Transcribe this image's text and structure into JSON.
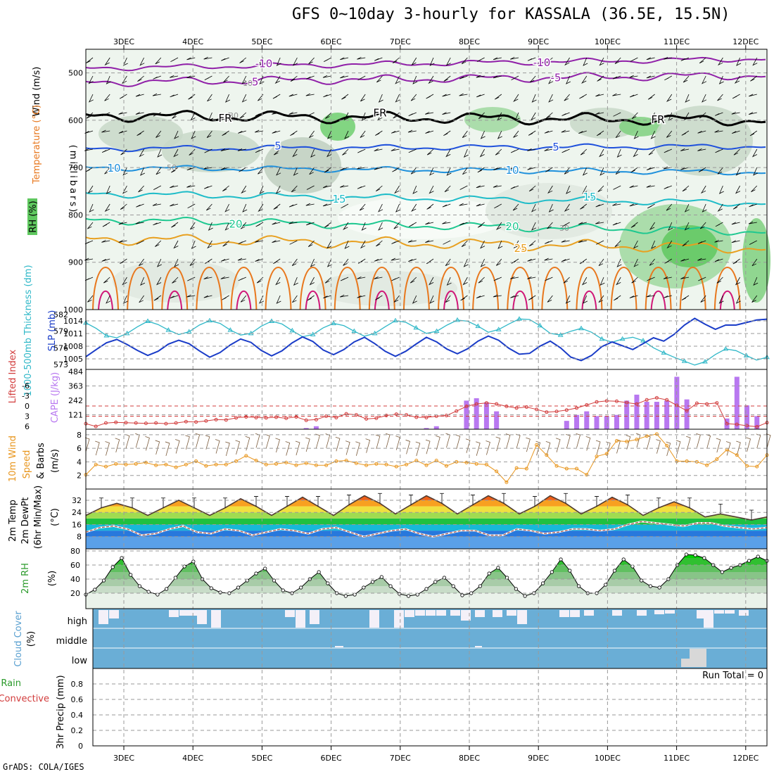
{
  "title": "GFS 0~10day 3-hourly for KASSALA (36.5E, 15.5N)",
  "credit": "GrADS: COLA/IGES",
  "run_total": "Run Total = 0",
  "chart_data": [
    {
      "type": "contour",
      "name": "upper-air cross section",
      "x_dates": [
        "3DEC",
        "4DEC",
        "5DEC",
        "6DEC",
        "7DEC",
        "8DEC",
        "9DEC",
        "10DEC",
        "11DEC",
        "12DEC"
      ],
      "ylabel": "(millibars)",
      "side_labels": [
        "Wind (m/s)",
        "Temperature (°C)",
        "RH (%)"
      ],
      "yticks": [
        500,
        600,
        700,
        800,
        900,
        1000
      ],
      "ylim": [
        1000,
        450
      ],
      "temperature_contours": [
        {
          "value": -10,
          "label": "-10"
        },
        {
          "value": -5,
          "label": "-5"
        },
        {
          "value": 0,
          "label": "FR"
        },
        {
          "value": 5,
          "label": "5"
        },
        {
          "value": 10,
          "label": "10"
        },
        {
          "value": 15,
          "label": "15"
        },
        {
          "value": 20,
          "label": "20"
        },
        {
          "value": 25,
          "label": "25"
        }
      ],
      "rh_labels": [
        "10",
        "30",
        "30",
        "50"
      ]
    },
    {
      "type": "line",
      "name": "thickness and SLP",
      "ylabel_left": "1000-500mb Thickness (dm)",
      "ylabel_right": "SLP (mb)",
      "left_ticks": [
        573,
        576,
        579,
        582
      ],
      "right_ticks": [
        1005,
        1008,
        1011,
        1014
      ],
      "series": [
        {
          "name": "Thickness",
          "color": "#30b8c8",
          "values": [
            580.5,
            579.5,
            578.2,
            577.8,
            578.6,
            579.8,
            580.8,
            580.2,
            579.2,
            578.4,
            578.9,
            580.1,
            580.9,
            580.4,
            579.2,
            578.3,
            578.6,
            579.9,
            580.8,
            580.3,
            579.1,
            578.0,
            578.4,
            579.6,
            580.4,
            580.0,
            579.0,
            578.1,
            578.6,
            579.8,
            580.9,
            580.6,
            579.6,
            578.6,
            579.0,
            580.1,
            581.0,
            580.8,
            579.9,
            578.8,
            579.3,
            580.3,
            581.2,
            581.1,
            580.0,
            578.6,
            578.3,
            579.0,
            579.5,
            578.8,
            577.6,
            577.0,
            577.6,
            577.9,
            577.3,
            576.0,
            575.1,
            574.3,
            573.6,
            572.9,
            573.5,
            574.8,
            575.8,
            575.5,
            574.6,
            573.8,
            574.3
          ]
        },
        {
          "name": "SLP",
          "color": "#1a3cc8",
          "values": [
            1005.5,
            1007.2,
            1008.8,
            1009.6,
            1008.4,
            1007.0,
            1005.8,
            1006.8,
            1008.5,
            1009.4,
            1008.6,
            1006.9,
            1005.4,
            1006.5,
            1008.3,
            1009.7,
            1008.9,
            1007.0,
            1005.7,
            1006.9,
            1008.8,
            1010.2,
            1009.1,
            1007.1,
            1006.0,
            1007.2,
            1009.0,
            1010.1,
            1008.6,
            1006.8,
            1005.6,
            1006.8,
            1008.5,
            1010.1,
            1009.0,
            1007.3,
            1006.2,
            1007.4,
            1009.2,
            1010.4,
            1009.4,
            1007.5,
            1006.1,
            1006.3,
            1008.0,
            1009.2,
            1007.6,
            1005.4,
            1004.6,
            1005.8,
            1007.9,
            1009.0,
            1008.1,
            1007.2,
            1008.6,
            1010.0,
            1009.2,
            1010.8,
            1013.0,
            1014.6,
            1013.2,
            1012.0,
            1013.0,
            1013.0,
            1013.6,
            1014.2,
            1014.4
          ]
        }
      ]
    },
    {
      "type": "bar+line",
      "name": "CAPE and lifted index",
      "ylabel_left": "Lifted Index",
      "ylabel_right": "CAPE (J/kg)",
      "li_ticks": [
        "6",
        "3",
        "0",
        "-3",
        "-6"
      ],
      "cape_ticks": [
        121,
        242,
        363,
        484
      ],
      "series": [
        {
          "name": "Lifted Index",
          "color": "#d23c3c",
          "values": [
            5.2,
            6.0,
            5.0,
            4.8,
            4.9,
            5.0,
            5.1,
            5.0,
            5.2,
            5.0,
            4.6,
            4.7,
            4.4,
            4.0,
            4.1,
            3.5,
            3.2,
            3.4,
            3.5,
            3.3,
            3.6,
            3.2,
            4.2,
            4.0,
            3.0,
            3.4,
            2.3,
            2.6,
            3.8,
            3.6,
            2.8,
            2.4,
            2.6,
            3.3,
            3.4,
            3.0,
            2.8,
            1.5,
            0.1,
            -0.6,
            -0.9,
            -0.6,
            0.1,
            0.6,
            0.3,
            1.0,
            1.8,
            1.6,
            1.2,
            0.6,
            -0.3,
            -1.2,
            -1.5,
            -1.4,
            -1.0,
            -0.6,
            -1.8,
            -2.4,
            -1.8,
            -0.2,
            1.4,
            -0.8,
            -0.6,
            -0.9,
            5.2,
            5.4,
            5.8,
            6.1,
            4.9
          ]
        },
        {
          "name": "CAPE",
          "color": "#b878f0",
          "values": [
            0,
            0,
            0,
            0,
            0,
            0,
            0,
            0,
            0,
            0,
            0,
            0,
            0,
            0,
            0,
            0,
            0,
            0,
            0,
            0,
            0,
            0,
            10,
            25,
            0,
            0,
            0,
            0,
            0,
            0,
            0,
            0,
            0,
            0,
            10,
            25,
            0,
            0,
            240,
            260,
            225,
            150,
            0,
            0,
            0,
            0,
            0,
            0,
            70,
            120,
            150,
            110,
            110,
            120,
            240,
            290,
            230,
            230,
            240,
            440,
            250,
            0,
            0,
            0,
            90,
            440,
            200,
            110,
            0
          ]
        }
      ]
    },
    {
      "type": "line",
      "name": "10m wind speed",
      "ylabel": "10m Wind Speed & Barbs (m/s)",
      "yticks": [
        2,
        4,
        6,
        8
      ],
      "series": [
        {
          "name": "Wind Speed",
          "color": "#e8961e",
          "values": [
            2.1,
            3.6,
            3.3,
            3.7,
            3.6,
            3.7,
            3.9,
            3.5,
            3.6,
            3.2,
            3.6,
            4.1,
            3.4,
            3.6,
            3.6,
            4.1,
            4.9,
            4.2,
            3.6,
            3.7,
            3.9,
            3.5,
            3.8,
            3.5,
            3.5,
            4.1,
            4.2,
            3.8,
            3.5,
            3.7,
            3.6,
            3.3,
            3.6,
            4.2,
            3.5,
            4.2,
            3.4,
            4.0,
            3.9,
            3.7,
            3.6,
            2.6,
            1.0,
            3.1,
            3.0,
            6.5,
            5.0,
            3.4,
            3.0,
            3.0,
            2.1,
            4.8,
            5.2,
            7.1,
            7.0,
            7.3,
            7.8,
            8.1,
            6.4,
            4.1,
            4.1,
            4.0,
            3.5,
            4.4,
            5.8,
            5.0,
            3.4,
            3.3,
            5.0
          ]
        }
      ]
    },
    {
      "type": "area+line",
      "name": "2m temperature and dewpoint",
      "ylabel": "2m Temp 2m DewPt (6hr Min/Max) (°C)",
      "yticks": [
        8,
        16,
        24,
        32
      ],
      "series": [
        {
          "name": "2m Temp",
          "color": "#503c32",
          "values": [
            22,
            27,
            30,
            27,
            22,
            27,
            32,
            27,
            22,
            27,
            33,
            28,
            22,
            28,
            34,
            28,
            22,
            29,
            35,
            30,
            23,
            29,
            35,
            30,
            23,
            29,
            35,
            30,
            23,
            28,
            35,
            30,
            23,
            28,
            34,
            29,
            22,
            27,
            31,
            27,
            21,
            23,
            21,
            19,
            21
          ]
        },
        {
          "name": "2m DewPt",
          "color": "#a85a50",
          "values": [
            11,
            14,
            15,
            13,
            9,
            10,
            13,
            15,
            11,
            10,
            13,
            12,
            9,
            11,
            13,
            12,
            10,
            13,
            14,
            11,
            8,
            10,
            12,
            13,
            10,
            8,
            10,
            12,
            12,
            9,
            9,
            13,
            12,
            10,
            11,
            13,
            13,
            12,
            13,
            16,
            18,
            17,
            16,
            15,
            17,
            17,
            15,
            14,
            13,
            14
          ]
        }
      ]
    },
    {
      "type": "area+line",
      "name": "2m relative humidity",
      "ylabel": "2m RH (%)",
      "yticks": [
        20,
        40,
        60,
        80
      ],
      "series": [
        {
          "name": "2m RH",
          "color": "#2a9a2a",
          "values": [
            18,
            25,
            38,
            57,
            70,
            46,
            30,
            22,
            18,
            26,
            42,
            58,
            65,
            40,
            27,
            21,
            20,
            28,
            38,
            48,
            55,
            38,
            24,
            20,
            28,
            40,
            50,
            34,
            20,
            16,
            18,
            28,
            36,
            43,
            30,
            19,
            16,
            18,
            26,
            36,
            42,
            30,
            17,
            20,
            30,
            48,
            56,
            42,
            26,
            16,
            20,
            34,
            50,
            68,
            52,
            30,
            20,
            20,
            32,
            52,
            68,
            58,
            38,
            30,
            28,
            40,
            60,
            75,
            74,
            70,
            60,
            50,
            56,
            60,
            66,
            72,
            66
          ]
        }
      ]
    },
    {
      "type": "bar",
      "name": "cloud cover",
      "ylabel": "Cloud Cover (%)",
      "levels": [
        "high",
        "middle",
        "low"
      ]
    },
    {
      "type": "bar",
      "name": "3hr precipitation",
      "ylabel": "3hr Precip (mm)",
      "ylabel_total": "Total / Rain",
      "ylabel_conv": "Convective",
      "yticks": [
        "0",
        "0.2",
        "0.4",
        "0.6",
        "0.8"
      ],
      "values": []
    }
  ]
}
